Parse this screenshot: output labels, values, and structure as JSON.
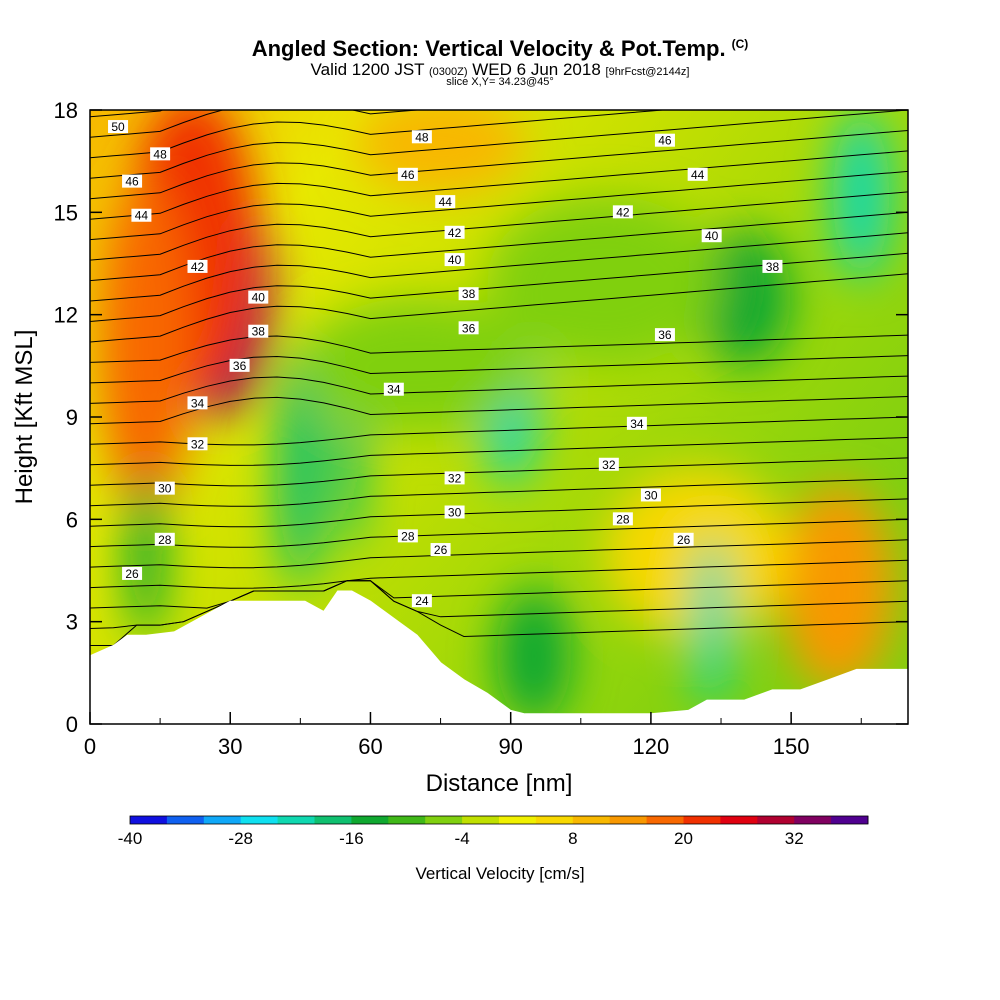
{
  "header": {
    "title": "Angled Section: Vertical Velocity & Pot.Temp.",
    "title_suffix": "(C)",
    "valid_prefix": "Valid 1200 JST",
    "valid_utc": "(0300Z)",
    "valid_date": "WED 6 Jun 2018",
    "forecast": "[9hrFcst@2144z]",
    "slice": "slice X,Y= 34.23@45°"
  },
  "chart_data": {
    "type": "heatmap",
    "xlabel": "Distance [nm]",
    "ylabel": "Height [Kft MSL]",
    "xlim": [
      0,
      175
    ],
    "ylim": [
      0,
      18
    ],
    "x_ticks": [
      0,
      30,
      60,
      90,
      120,
      150
    ],
    "y_ticks": [
      0,
      3,
      6,
      9,
      12,
      15,
      18
    ],
    "colorbar": {
      "label": "Vertical Velocity [cm/s]",
      "tick_labels": [
        -40,
        -28,
        -16,
        -4,
        8,
        20,
        32
      ],
      "colors": [
        "#1010e0",
        "#1060f0",
        "#10a8f8",
        "#10e0f0",
        "#10d8b0",
        "#10c070",
        "#10a830",
        "#40b818",
        "#80d010",
        "#c0e000",
        "#f0f000",
        "#f8d800",
        "#f8b800",
        "#f89800",
        "#f86800",
        "#f03000",
        "#e00010",
        "#b00030",
        "#800060",
        "#500090"
      ]
    },
    "velocity_blobs": [
      {
        "x": 28,
        "y": 12.5,
        "rx": 11,
        "ry": 3.5,
        "v": 34
      },
      {
        "x": 22,
        "y": 14.0,
        "rx": 14,
        "ry": 4.5,
        "v": 20
      },
      {
        "x": 12,
        "y": 11.0,
        "rx": 10,
        "ry": 5.0,
        "v": 16
      },
      {
        "x": 75,
        "y": 17.0,
        "rx": 18,
        "ry": 1.5,
        "v": 10
      },
      {
        "x": 160,
        "y": 4.0,
        "rx": 12,
        "ry": 3.0,
        "v": 12
      },
      {
        "x": 130,
        "y": 5.0,
        "rx": 20,
        "ry": 2.5,
        "v": 5
      },
      {
        "x": 45,
        "y": 7.5,
        "rx": 5,
        "ry": 3.5,
        "v": -20
      },
      {
        "x": 56,
        "y": 8.5,
        "rx": 3,
        "ry": 3.5,
        "v": -18
      },
      {
        "x": 90,
        "y": 9.5,
        "rx": 6,
        "ry": 2.5,
        "v": -22
      },
      {
        "x": 165,
        "y": 15.5,
        "rx": 6,
        "ry": 2.5,
        "v": -22
      },
      {
        "x": 140,
        "y": 12.5,
        "rx": 10,
        "ry": 2.0,
        "v": -14
      },
      {
        "x": 12,
        "y": 5.0,
        "rx": 4,
        "ry": 2.5,
        "v": -16
      },
      {
        "x": 95,
        "y": 2.0,
        "rx": 8,
        "ry": 2.0,
        "v": -14
      },
      {
        "x": 133,
        "y": 3.0,
        "rx": 4,
        "ry": 2.5,
        "v": -22
      },
      {
        "x": 110,
        "y": 13.0,
        "rx": 25,
        "ry": 2.5,
        "v": -8
      },
      {
        "x": 70,
        "y": 10.5,
        "rx": 25,
        "ry": 2.0,
        "v": -6
      }
    ],
    "terrain": {
      "x": [
        0,
        5,
        8,
        12,
        18,
        22,
        26,
        30,
        34,
        38,
        42,
        46,
        50,
        53,
        56,
        60,
        63,
        66,
        70,
        75,
        80,
        85,
        88,
        90,
        93,
        96,
        100,
        110,
        120,
        128,
        132,
        136,
        140,
        146,
        152,
        158,
        164,
        170,
        175
      ],
      "y": [
        2.0,
        2.3,
        2.6,
        2.6,
        2.7,
        3.0,
        3.3,
        3.6,
        3.6,
        3.6,
        3.6,
        3.6,
        3.3,
        3.9,
        3.9,
        3.6,
        3.3,
        3.0,
        2.6,
        1.8,
        1.3,
        0.9,
        0.6,
        0.4,
        0.3,
        0.3,
        0.3,
        0.3,
        0.3,
        0.4,
        0.7,
        0.7,
        0.7,
        1.0,
        1.0,
        1.3,
        1.6,
        1.6,
        1.6
      ]
    },
    "theta_label_values": [
      50,
      48,
      46,
      44,
      42,
      40,
      38,
      36,
      34,
      32,
      30,
      28,
      26,
      24
    ],
    "theta_labels": [
      {
        "t": "50",
        "x": 6,
        "y": 17.5
      },
      {
        "t": "48",
        "x": 15,
        "y": 16.7
      },
      {
        "t": "46",
        "x": 9,
        "y": 15.9
      },
      {
        "t": "44",
        "x": 11,
        "y": 14.9
      },
      {
        "t": "42",
        "x": 23,
        "y": 13.4
      },
      {
        "t": "40",
        "x": 36,
        "y": 12.5
      },
      {
        "t": "38",
        "x": 36,
        "y": 11.5
      },
      {
        "t": "36",
        "x": 32,
        "y": 10.5
      },
      {
        "t": "34",
        "x": 23,
        "y": 9.4
      },
      {
        "t": "32",
        "x": 23,
        "y": 8.2
      },
      {
        "t": "30",
        "x": 16,
        "y": 6.9
      },
      {
        "t": "28",
        "x": 16,
        "y": 5.4
      },
      {
        "t": "26",
        "x": 9,
        "y": 4.4
      },
      {
        "t": "48",
        "x": 71,
        "y": 17.2
      },
      {
        "t": "46",
        "x": 68,
        "y": 16.1
      },
      {
        "t": "44",
        "x": 76,
        "y": 15.3
      },
      {
        "t": "42",
        "x": 78,
        "y": 14.4
      },
      {
        "t": "40",
        "x": 78,
        "y": 13.6
      },
      {
        "t": "38",
        "x": 81,
        "y": 12.6
      },
      {
        "t": "36",
        "x": 81,
        "y": 11.6
      },
      {
        "t": "34",
        "x": 65,
        "y": 9.8
      },
      {
        "t": "32",
        "x": 78,
        "y": 7.2
      },
      {
        "t": "30",
        "x": 78,
        "y": 6.2
      },
      {
        "t": "28",
        "x": 68,
        "y": 5.5
      },
      {
        "t": "26",
        "x": 75,
        "y": 5.1
      },
      {
        "t": "24",
        "x": 71,
        "y": 3.6
      },
      {
        "t": "46",
        "x": 123,
        "y": 17.1
      },
      {
        "t": "44",
        "x": 130,
        "y": 16.1
      },
      {
        "t": "42",
        "x": 114,
        "y": 15.0
      },
      {
        "t": "40",
        "x": 133,
        "y": 14.3
      },
      {
        "t": "38",
        "x": 146,
        "y": 13.4
      },
      {
        "t": "36",
        "x": 123,
        "y": 11.4
      },
      {
        "t": "34",
        "x": 117,
        "y": 8.8
      },
      {
        "t": "32",
        "x": 111,
        "y": 7.6
      },
      {
        "t": "30",
        "x": 120,
        "y": 6.7
      },
      {
        "t": "28",
        "x": 114,
        "y": 6.0
      },
      {
        "t": "26",
        "x": 127,
        "y": 5.4
      }
    ]
  }
}
